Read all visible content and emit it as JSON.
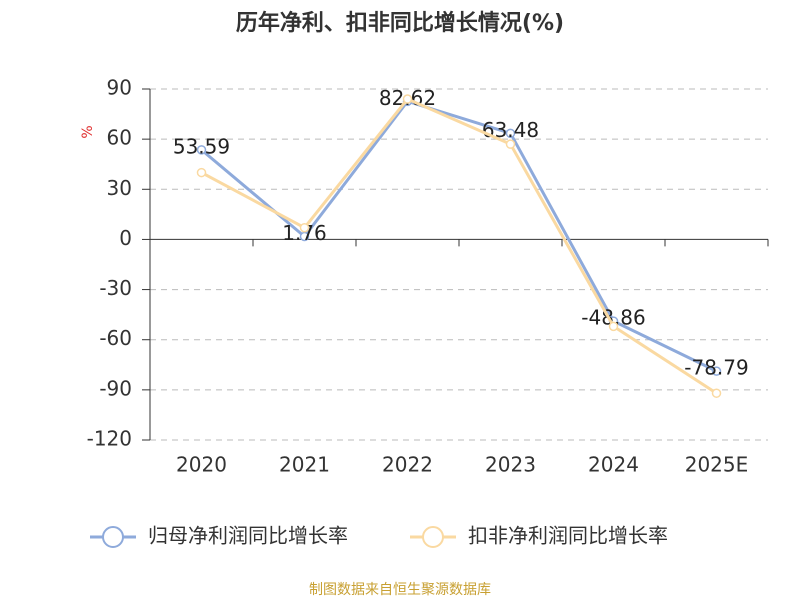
{
  "chart_data": {
    "type": "line",
    "title": "历年净利、扣非同比增长情况(%)",
    "y_label": "%",
    "categories": [
      "2020",
      "2021",
      "2022",
      "2023",
      "2024",
      "2025E"
    ],
    "series": [
      {
        "name": "归母净利润同比增长率",
        "color": "#8eaadb",
        "values": [
          53.59,
          1.76,
          82.62,
          63.48,
          -48.86,
          -78.79
        ],
        "show_labels": true
      },
      {
        "name": "扣非净利润同比增长率",
        "color": "#fad9a1",
        "values": [
          40,
          7,
          84,
          57,
          -52,
          -92
        ],
        "show_labels": false
      }
    ],
    "ylim": [
      -120,
      90
    ],
    "yticks": [
      -120,
      -90,
      -60,
      -30,
      0,
      30,
      60,
      90
    ],
    "grid": true,
    "source": "制图数据来自恒生聚源数据库"
  }
}
